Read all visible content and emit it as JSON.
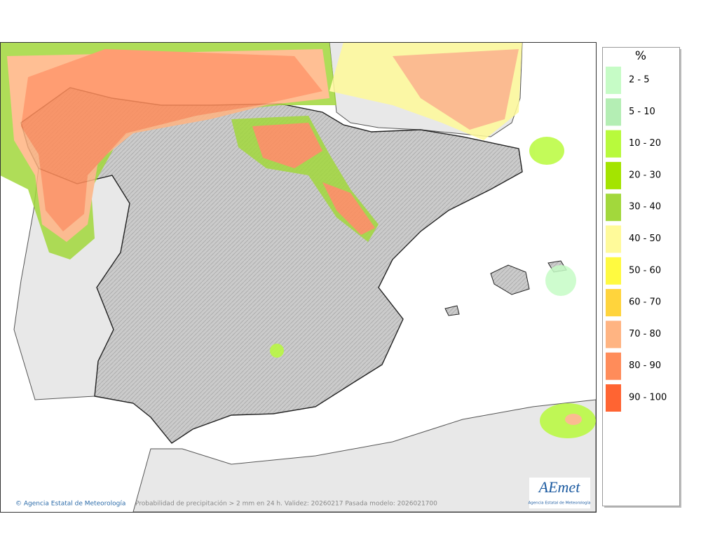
{
  "legend": {
    "title": "%",
    "items": [
      {
        "label": "2 - 5",
        "color": "#c6fcc6"
      },
      {
        "label": "5 - 10",
        "color": "#b4eeb4"
      },
      {
        "label": "10 - 20",
        "color": "#b8fa3c"
      },
      {
        "label": "20 - 30",
        "color": "#a4e400"
      },
      {
        "label": "30 - 40",
        "color": "#a2d83c"
      },
      {
        "label": "40 - 50",
        "color": "#fffa9a"
      },
      {
        "label": "50 - 60",
        "color": "#fffa40"
      },
      {
        "label": "60 - 70",
        "color": "#ffd43c"
      },
      {
        "label": "70 - 80",
        "color": "#ffb482"
      },
      {
        "label": "80 - 90",
        "color": "#ff8c5a"
      },
      {
        "label": "90 - 100",
        "color": "#ff6432"
      }
    ]
  },
  "footer": {
    "credit": "© Agencia Estatal de Meteorología",
    "caption": "Probabilidad de precipitación > 2 mm en 24 h. Validez: 20260217 Pasada modelo: 2026021700"
  },
  "logo": {
    "name": "AEmet",
    "subtitle": "Agencia Estatal de Meteorología"
  }
}
